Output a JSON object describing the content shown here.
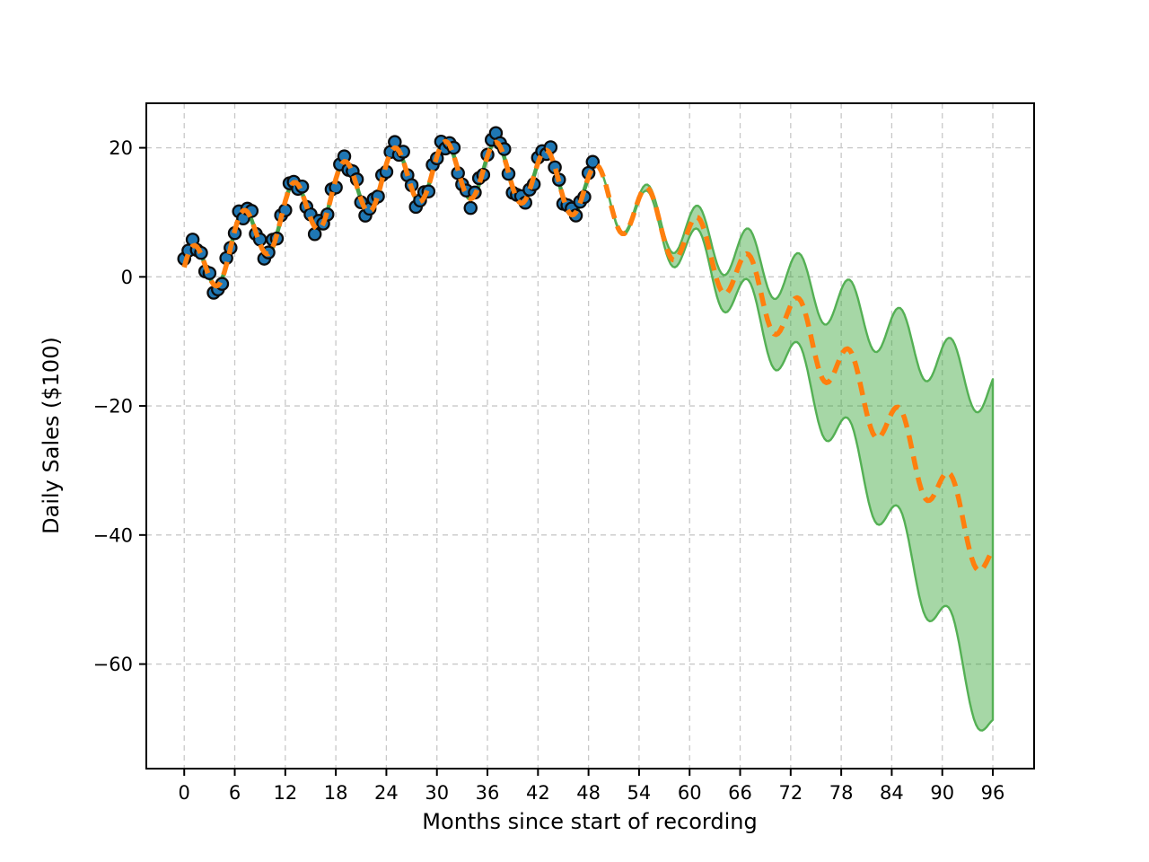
{
  "figure": {
    "background": "#ffffff"
  },
  "chart_data": {
    "type": "line",
    "title": "",
    "xlabel": "Months since start of recording",
    "ylabel": "Daily Sales ($100)",
    "legend": null,
    "grid": true,
    "grid_style": "dashed",
    "xlim": [
      -4.5,
      100.9
    ],
    "ylim": [
      -76.2,
      26.9
    ],
    "x_ticks": [
      0,
      6,
      12,
      18,
      24,
      30,
      36,
      42,
      48,
      54,
      60,
      66,
      72,
      78,
      84,
      90,
      96
    ],
    "x_tick_labels": [
      "0",
      "6",
      "12",
      "18",
      "24",
      "30",
      "36",
      "42",
      "48",
      "54",
      "60",
      "66",
      "72",
      "78",
      "84",
      "90",
      "96"
    ],
    "y_ticks": [
      20,
      0,
      -20,
      -40,
      -60
    ],
    "y_tick_labels": [
      "20",
      "0",
      "−20",
      "−40",
      "−60"
    ],
    "colors": {
      "observed_marker": "#1f77b4",
      "marker_edge": "#0c0c0c",
      "actual_line": "#45a449",
      "forecast_line": "#ff7f0e",
      "band_fill": "rgba(44,160,44,0.42)",
      "band_edge": "#54b054",
      "grid": "#c8c8c8",
      "axis": "#000000"
    },
    "series": [
      {
        "name": "observed",
        "kind": "scatter",
        "x_start": 0,
        "x_step": 0.5,
        "points": 98
      },
      {
        "name": "actual",
        "kind": "line",
        "x_range": [
          0,
          48.5
        ]
      },
      {
        "name": "forecast",
        "kind": "dashed-line",
        "x_range": [
          0,
          96
        ]
      },
      {
        "name": "forecast-interval",
        "kind": "band",
        "x_range": [
          48.5,
          96
        ]
      }
    ],
    "model": {
      "trend": {
        "intercept": -0.75,
        "slope": 1.039,
        "quad": -0.01557
      },
      "season": {
        "amplitude": 4.5,
        "period": 6,
        "peak_month": 1
      },
      "band_half_width": {
        "start_month": 48.5,
        "quad_coef": 0.0117
      }
    },
    "observed_noise": [
      1.3,
      0.4,
      1.0,
      -0.5,
      0.2,
      -0.9,
      0.6,
      -1.26,
      -0.6,
      -0.8,
      1.1,
      0.0,
      -0.4,
      0.9,
      -1.2,
      0.5,
      1.4,
      -0.3,
      0.7,
      -1.0,
      0.2,
      1.2,
      -0.6,
      0.4,
      -1.4,
      0.8,
      0.1,
      -0.7,
      1.0,
      -0.2,
      0.6,
      -1.1,
      1.3,
      0.0,
      -0.5,
      0.9,
      -1.3,
      0.4,
      0.8,
      -0.9,
      0.3,
      1.1,
      -0.4,
      -1.0,
      0.5,
      1.2,
      -0.2,
      0.7,
      -1.2,
      0.1,
      0.9,
      -0.6,
      1.4,
      -0.1,
      0.5,
      -1.3,
      0.2,
      0.8,
      -0.8,
      1.0,
      -0.3,
      0.6,
      -1.1,
      0.3,
      1.2,
      -0.5,
      0.0,
      0.7,
      -1.4,
      0.4,
      1.0,
      -0.7,
      0.2,
      0.9,
      1.4,
      0.5,
      1.3,
      -0.2,
      -0.8,
      0.6,
      1.1,
      -0.4,
      0.1,
      -1.2,
      0.8,
      0.3,
      -0.6,
      1.2,
      -0.1,
      0.4,
      -0.9,
      0.7,
      1.0,
      -0.5,
      0.2,
      -1.1,
      0.6,
      0.9
    ],
    "sampled_at_ticks": {
      "months": [
        0,
        6,
        12,
        18,
        24,
        30,
        36,
        42,
        48,
        54,
        60,
        66,
        72,
        78,
        84,
        90,
        96
      ],
      "center": [
        1.5,
        7.2,
        11.7,
        15.2,
        17.5,
        18.7,
        18.7,
        17.7,
        15.5,
        12.2,
        7.8,
        2.3,
        -4.4,
        -12.2,
        -21.1,
        -31.1,
        -42.3
      ],
      "band_months": [
        48,
        54,
        60,
        66,
        72,
        78,
        84,
        90,
        96
      ],
      "band_upper": [
        15.5,
        12.6,
        9.3,
        5.8,
        2.1,
        -2.0,
        -6.4,
        -11.0,
        -15.9
      ],
      "band_lower": [
        15.5,
        11.9,
        6.2,
        -1.3,
        -10.9,
        -22.4,
        -35.8,
        -51.3,
        -68.7
      ]
    }
  }
}
